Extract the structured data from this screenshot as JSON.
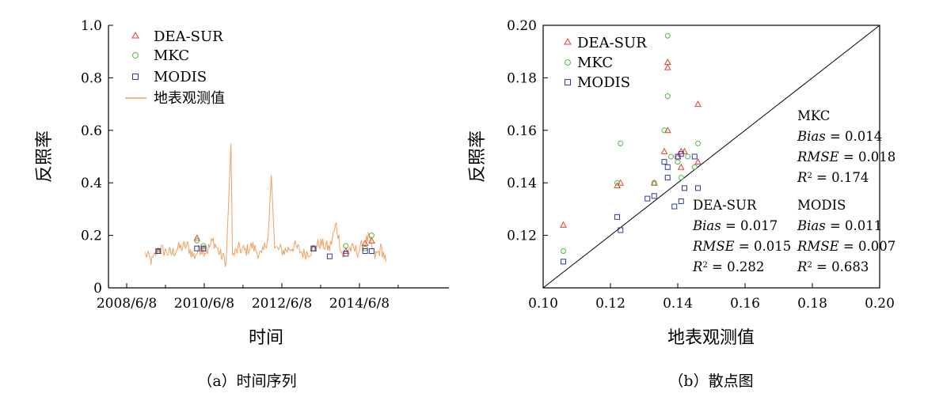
{
  "chart_data": [
    {
      "type": "line",
      "xlabel": "时间",
      "ylabel": "反照率",
      "caption": "（a）时间序列",
      "xticks": [
        "2008/6/8",
        "2010/6/8",
        "2012/6/8",
        "2014/6/8"
      ],
      "yticks": [
        "0",
        "0.2",
        "0.4",
        "0.6",
        "0.8",
        "1.0"
      ],
      "ylim": [
        0,
        1.0
      ],
      "legend": [
        {
          "label": "DEA-SUR",
          "marker": "triangle",
          "color": "#e8412c"
        },
        {
          "label": "MKC",
          "marker": "circle",
          "color": "#4fb848"
        },
        {
          "label": "MODIS",
          "marker": "square",
          "color": "#2e3b9a"
        },
        {
          "label": "地表观测值",
          "marker": "line",
          "color": "#f0a162"
        }
      ],
      "line_series": {
        "name": "地表观测值",
        "color": "#f0a162",
        "points": [
          [
            "2008/12/1",
            0.13
          ],
          [
            "2009/2/1",
            0.1
          ],
          [
            "2009/4/1",
            0.15
          ],
          [
            "2009/6/1",
            0.14
          ],
          [
            "2009/8/1",
            0.13
          ],
          [
            "2009/10/1",
            0.15
          ],
          [
            "2010/1/1",
            0.16
          ],
          [
            "2010/3/1",
            0.12
          ],
          [
            "2010/5/1",
            0.15
          ],
          [
            "2010/7/1",
            0.14
          ],
          [
            "2010/9/1",
            0.18
          ],
          [
            "2010/11/1",
            0.13
          ],
          [
            "2011/1/1",
            0.1
          ],
          [
            "2011/2/15",
            0.55
          ],
          [
            "2011/3/1",
            0.12
          ],
          [
            "2011/5/1",
            0.15
          ],
          [
            "2011/7/1",
            0.14
          ],
          [
            "2011/9/1",
            0.16
          ],
          [
            "2011/12/1",
            0.12
          ],
          [
            "2012/2/1",
            0.2
          ],
          [
            "2012/3/1",
            0.43
          ],
          [
            "2012/4/1",
            0.15
          ],
          [
            "2012/7/1",
            0.14
          ],
          [
            "2012/10/1",
            0.16
          ],
          [
            "2013/1/1",
            0.13
          ],
          [
            "2013/3/1",
            0.14
          ],
          [
            "2013/6/1",
            0.17
          ],
          [
            "2013/9/1",
            0.15
          ],
          [
            "2013/11/1",
            0.24
          ],
          [
            "2014/1/1",
            0.12
          ],
          [
            "2014/3/1",
            0.15
          ],
          [
            "2014/6/1",
            0.14
          ],
          [
            "2014/9/1",
            0.19
          ],
          [
            "2014/11/1",
            0.12
          ],
          [
            "2015/1/1",
            0.15
          ],
          [
            "2015/2/15",
            0.1
          ]
        ]
      },
      "scatter_series": [
        {
          "name": "DEA-SUR",
          "points": [
            [
              "2009/4/1",
              0.14
            ],
            [
              "2010/4/1",
              0.19
            ],
            [
              "2010/6/1",
              0.15
            ],
            [
              "2013/4/1",
              0.15
            ],
            [
              "2014/2/1",
              0.14
            ],
            [
              "2014/8/1",
              0.17
            ],
            [
              "2014/10/1",
              0.18
            ]
          ]
        },
        {
          "name": "MKC",
          "points": [
            [
              "2009/4/1",
              0.14
            ],
            [
              "2010/4/1",
              0.18
            ],
            [
              "2010/6/1",
              0.16
            ],
            [
              "2013/4/1",
              0.15
            ],
            [
              "2014/2/1",
              0.16
            ],
            [
              "2014/8/1",
              0.15
            ],
            [
              "2014/10/1",
              0.2
            ]
          ]
        },
        {
          "name": "MODIS",
          "points": [
            [
              "2009/4/1",
              0.14
            ],
            [
              "2010/4/1",
              0.15
            ],
            [
              "2010/6/1",
              0.15
            ],
            [
              "2013/4/1",
              0.15
            ],
            [
              "2013/9/1",
              0.12
            ],
            [
              "2014/2/1",
              0.13
            ],
            [
              "2014/8/1",
              0.14
            ],
            [
              "2014/10/1",
              0.14
            ]
          ]
        }
      ]
    },
    {
      "type": "scatter",
      "xlabel": "地表观测值",
      "ylabel": "反照率",
      "caption": "（b）散点图",
      "xlim": [
        0.1,
        0.2
      ],
      "ylim": [
        0.1,
        0.2
      ],
      "xticks": [
        "0.10",
        "0.12",
        "0.14",
        "0.16",
        "0.18",
        "0.20"
      ],
      "yticks": [
        "0.12",
        "0.14",
        "0.16",
        "0.18",
        "0.20"
      ],
      "reference_line": "1:1",
      "legend": [
        {
          "label": "DEA-SUR",
          "marker": "triangle",
          "color": "#e8412c"
        },
        {
          "label": "MKC",
          "marker": "circle",
          "color": "#4fb848"
        },
        {
          "label": "MODIS",
          "marker": "square",
          "color": "#2e3b9a"
        }
      ],
      "series": [
        {
          "name": "DEA-SUR",
          "color": "#e8412c",
          "points": [
            [
              0.106,
              0.124
            ],
            [
              0.122,
              0.139
            ],
            [
              0.123,
              0.14
            ],
            [
              0.133,
              0.14
            ],
            [
              0.136,
              0.152
            ],
            [
              0.137,
              0.186
            ],
            [
              0.137,
              0.184
            ],
            [
              0.137,
              0.16
            ],
            [
              0.14,
              0.15
            ],
            [
              0.141,
              0.152
            ],
            [
              0.141,
              0.146
            ],
            [
              0.142,
              0.152
            ],
            [
              0.146,
              0.17
            ],
            [
              0.146,
              0.148
            ]
          ]
        },
        {
          "name": "MKC",
          "color": "#4fb848",
          "points": [
            [
              0.106,
              0.114
            ],
            [
              0.122,
              0.14
            ],
            [
              0.123,
              0.155
            ],
            [
              0.133,
              0.14
            ],
            [
              0.136,
              0.16
            ],
            [
              0.137,
              0.196
            ],
            [
              0.137,
              0.173
            ],
            [
              0.138,
              0.15
            ],
            [
              0.14,
              0.148
            ],
            [
              0.141,
              0.142
            ],
            [
              0.143,
              0.15
            ],
            [
              0.145,
              0.146
            ],
            [
              0.146,
              0.155
            ]
          ]
        },
        {
          "name": "MODIS",
          "color": "#2e3b9a",
          "points": [
            [
              0.106,
              0.11
            ],
            [
              0.122,
              0.127
            ],
            [
              0.123,
              0.122
            ],
            [
              0.131,
              0.134
            ],
            [
              0.133,
              0.135
            ],
            [
              0.136,
              0.148
            ],
            [
              0.137,
              0.146
            ],
            [
              0.137,
              0.142
            ],
            [
              0.139,
              0.131
            ],
            [
              0.14,
              0.15
            ],
            [
              0.141,
              0.133
            ],
            [
              0.141,
              0.151
            ],
            [
              0.142,
              0.138
            ],
            [
              0.145,
              0.15
            ],
            [
              0.146,
              0.138
            ]
          ]
        }
      ],
      "stats": [
        {
          "name": "MKC",
          "color": "#6cbf52",
          "bias_label": "Bias",
          "bias": "0.014",
          "rmse_label": "RMSE",
          "rmse": "0.018",
          "r2": "0.174"
        },
        {
          "name": "DEA-SUR",
          "color": "#e8412c",
          "bias_label": "Bias",
          "bias": "0.017",
          "rmse_label": "RMSE",
          "rmse": "0.015",
          "r2": "0.282"
        },
        {
          "name": "MODIS",
          "color": "#2e3b9a",
          "bias_label": "Bias",
          "bias": "0.011",
          "rmse_label": "RMSE",
          "rmse": "0.007",
          "r2": "0.683"
        }
      ]
    }
  ]
}
